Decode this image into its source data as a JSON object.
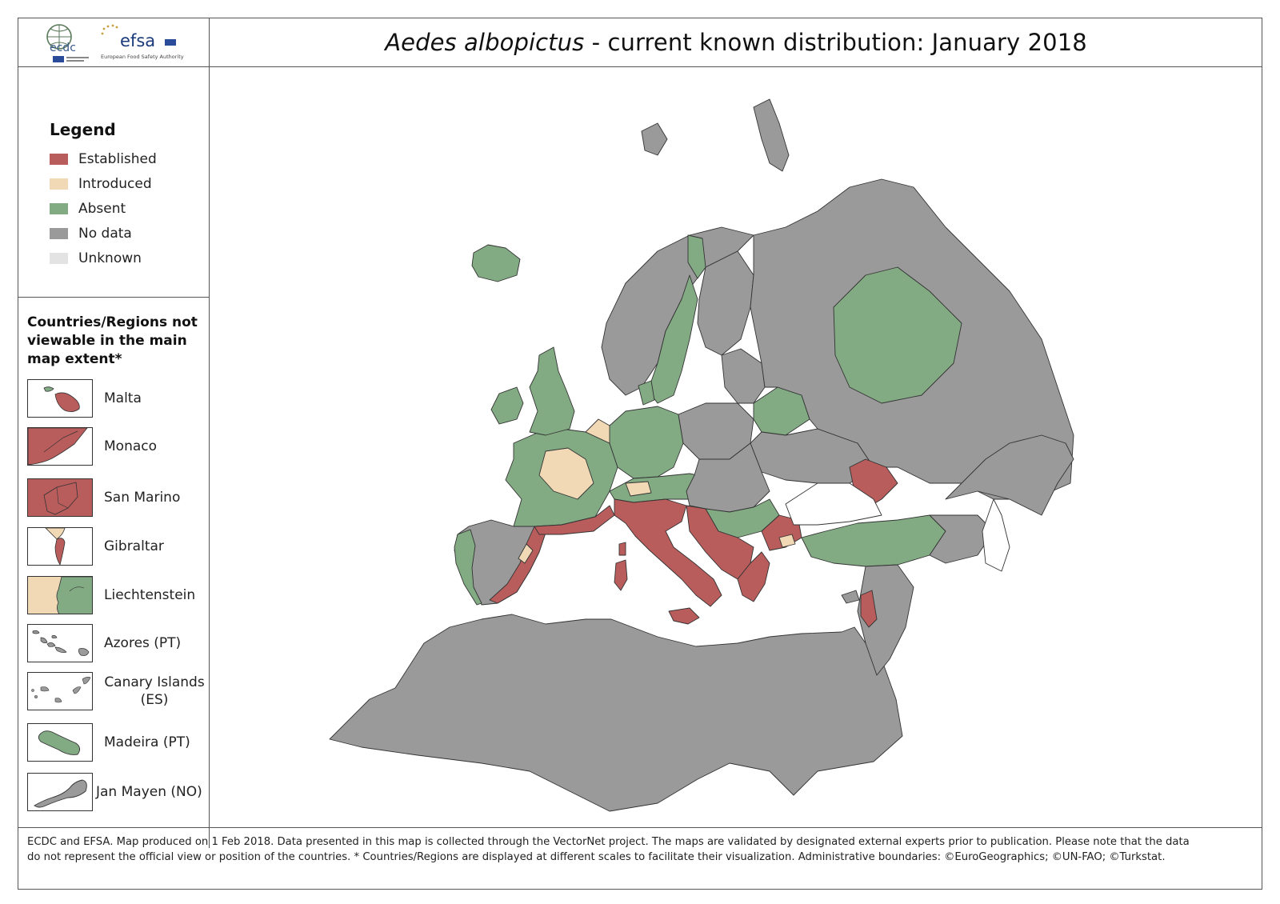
{
  "header": {
    "title_species": "Aedes albopictus",
    "title_rest": " - current known distribution: January 2018",
    "logos": {
      "ecdc": "ecdc",
      "efsa": "efsa",
      "efsa_sub": "European Food Safety Authority"
    }
  },
  "legend": {
    "title": "Legend",
    "items": [
      {
        "label": "Established",
        "color": "#b85c5c"
      },
      {
        "label": "Introduced",
        "color": "#f1d9b5"
      },
      {
        "label": "Absent",
        "color": "#82ab84"
      },
      {
        "label": "No data",
        "color": "#9a9a9a"
      },
      {
        "label": "Unknown",
        "color": "#e3e3e3"
      }
    ]
  },
  "insets": {
    "title": "Countries/Regions not viewable in the main map extent*",
    "items": [
      {
        "label": "Malta",
        "status": "Established"
      },
      {
        "label": "Monaco",
        "status": "Established"
      },
      {
        "label": "San Marino",
        "status": "Established"
      },
      {
        "label": "Gibraltar",
        "status": "Established"
      },
      {
        "label": "Liechtenstein",
        "status": "Introduced / Absent"
      },
      {
        "label": "Azores (PT)",
        "status": "No data"
      },
      {
        "label": "Canary Islands (ES)",
        "status": "No data"
      },
      {
        "label": "Madeira (PT)",
        "status": "Absent"
      },
      {
        "label": "Jan Mayen (NO)",
        "status": "No data"
      }
    ]
  },
  "map": {
    "colors": {
      "established": "#b85c5c",
      "introduced": "#f1d9b5",
      "absent": "#82ab84",
      "no_data": "#9a9a9a",
      "border": "#333333"
    }
  },
  "footer": {
    "line1": "ECDC and EFSA. Map produced on 1 Feb 2018. Data presented in this map is collected through the VectorNet project. The maps are validated by designated external experts prior to publication. Please note that the data",
    "line2": "do not represent the official view or position of the countries. * Countries/Regions are displayed at different scales to facilitate their visualization. Administrative boundaries: ©EuroGeographics; ©UN-FAO; ©Turkstat."
  }
}
